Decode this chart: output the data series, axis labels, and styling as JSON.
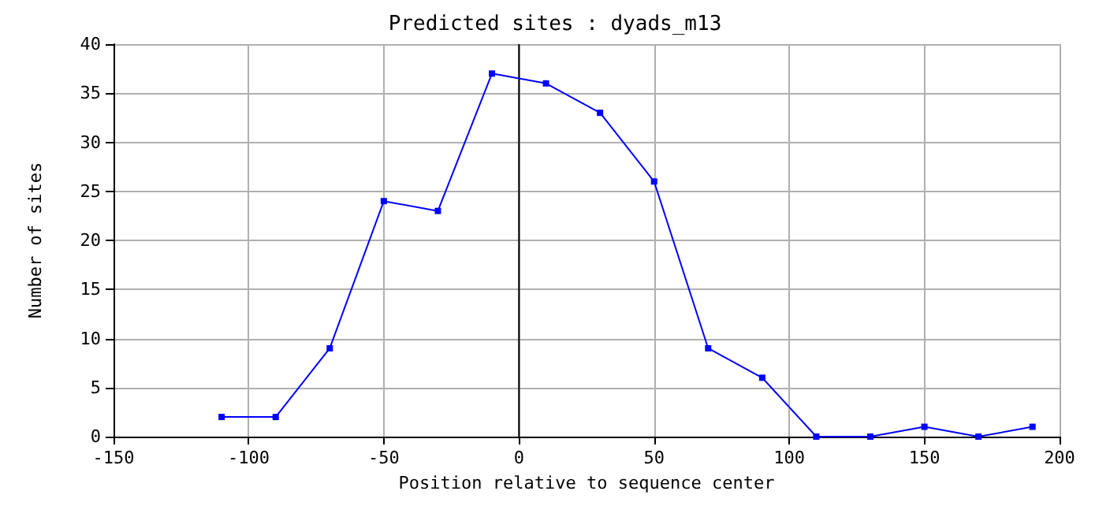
{
  "chart_data": {
    "type": "line",
    "title": "Predicted sites : dyads_m13",
    "xlabel": "Position relative to sequence center",
    "ylabel": "Number of sites",
    "x": [
      -110,
      -90,
      -70,
      -50,
      -30,
      -10,
      10,
      30,
      50,
      70,
      90,
      110,
      130,
      150,
      170,
      190
    ],
    "series": [
      {
        "color": "#0000ff",
        "values": [
          2,
          2,
          9,
          24,
          23,
          37,
          36,
          33,
          26,
          9,
          6,
          0,
          0,
          1,
          0,
          1
        ]
      }
    ],
    "xlim": [
      -150,
      200
    ],
    "xticks": [
      -150,
      -100,
      -50,
      0,
      50,
      100,
      150,
      200
    ],
    "ylim": [
      0,
      40
    ],
    "yticks": [
      0,
      5,
      10,
      15,
      20,
      25,
      30,
      35,
      40
    ],
    "grid": true,
    "marker": "square",
    "line_style": "solid",
    "ref_lines": [
      {
        "axis": "x",
        "value": 0,
        "color": "#000000"
      }
    ]
  }
}
